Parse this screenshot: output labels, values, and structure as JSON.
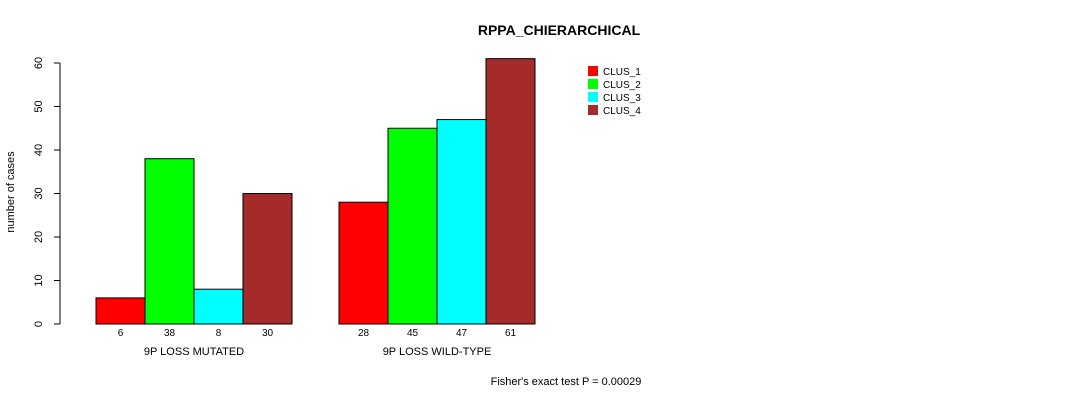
{
  "chart_data": {
    "type": "bar",
    "title": "RPPA_CHIERARCHICAL",
    "ylabel": "number of cases",
    "xlabel": "",
    "ylim": [
      0,
      60
    ],
    "yticks": [
      0,
      10,
      20,
      30,
      40,
      50,
      60
    ],
    "categories": [
      "9P LOSS MUTATED",
      "9P LOSS WILD-TYPE"
    ],
    "series": [
      {
        "name": "CLUS_1",
        "color": "#ff0000",
        "values": [
          6,
          28
        ]
      },
      {
        "name": "CLUS_2",
        "color": "#00ff00",
        "values": [
          38,
          45
        ]
      },
      {
        "name": "CLUS_3",
        "color": "#00ffff",
        "values": [
          8,
          47
        ]
      },
      {
        "name": "CLUS_4",
        "color": "#a52a2a",
        "values": [
          30,
          61
        ]
      }
    ],
    "footnote": "Fisher's exact test P = 0.00029",
    "legend_position": "top-right"
  }
}
